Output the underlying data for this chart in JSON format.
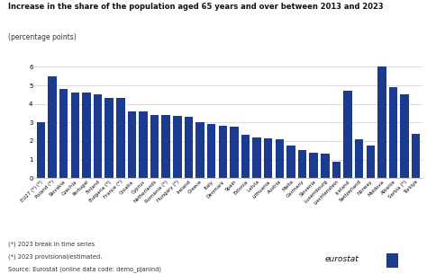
{
  "title": "Increase in the share of the population aged 65 years and over between 2013 and 2023",
  "subtitle": "(percentage points)",
  "bar_color": "#1a3b8f",
  "background_color": "#ffffff",
  "ylim": [
    0,
    6.5
  ],
  "yticks": [
    0,
    1,
    2,
    3,
    4,
    5,
    6
  ],
  "categories": [
    "EU27 (*) (*)",
    "Poland (*)",
    "Slovakia",
    "Czechia",
    "Portugal",
    "Finland",
    "Bulgaria (*)",
    "France (*)",
    "Croatia",
    "Cyprus",
    "Netherlands",
    "Romania (*)",
    "Hungary (*)",
    "Ireland",
    "Greece",
    "Italy",
    "Denmark",
    "Spain",
    "Estonia",
    "Latvia",
    "Lithuania",
    "Austria",
    "Malta",
    "Germany",
    "Slovenia",
    "Luxembourg",
    "Liechtenstein",
    "Iceland",
    "Switzerland",
    "Norway",
    "Moldova",
    "Albania",
    "Serbia (*)",
    "Türkiye"
  ],
  "values": [
    3.0,
    5.5,
    4.8,
    4.6,
    4.6,
    4.5,
    4.3,
    4.3,
    3.6,
    3.6,
    3.4,
    3.4,
    3.35,
    3.3,
    3.0,
    2.9,
    2.8,
    2.75,
    2.35,
    2.2,
    2.15,
    2.1,
    1.75,
    1.5,
    1.35,
    1.3,
    0.9,
    4.7,
    2.1,
    1.75,
    6.0,
    4.9,
    4.5,
    2.4
  ],
  "footnote1": "(*) 2023 break in time series",
  "footnote2": "(*) 2023 provisional/estimated.",
  "source": "Source: Eurostat (online data code: demo_pjanind)",
  "title_fontsize": 6.0,
  "subtitle_fontsize": 5.5,
  "tick_fontsize": 4.0,
  "ytick_fontsize": 5.0,
  "footnote_fontsize": 4.8,
  "bar_width": 0.75
}
